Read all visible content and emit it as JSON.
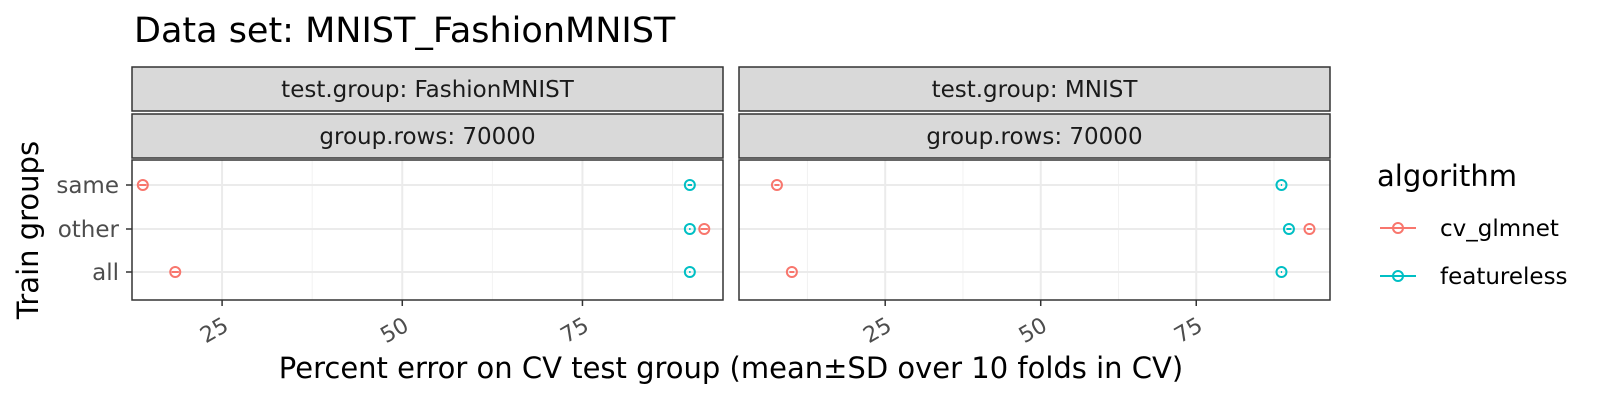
{
  "chart_data": {
    "type": "scatter",
    "title": "Data set: MNIST_FashionMNIST",
    "xlabel": "Percent error on CV test group (mean±SD over 10 folds in CV)",
    "ylabel": "Train groups",
    "categories": [
      "same",
      "other",
      "all"
    ],
    "xticks": [
      25,
      50,
      75
    ],
    "grid": true,
    "legend": {
      "title": "algorithm",
      "position": "right",
      "entries": [
        {
          "name": "cv_glmnet",
          "color": "#F8766D"
        },
        {
          "name": "featureless",
          "color": "#00BFC4"
        }
      ]
    },
    "panels": [
      {
        "strip_top": "test.group: FashionMNIST",
        "strip_bottom": "group.rows: 70000",
        "xlim": [
          12.5,
          94.5
        ],
        "series": [
          {
            "name": "cv_glmnet",
            "points": [
              {
                "y": "same",
                "x": 14.0,
                "sd": 0.5
              },
              {
                "y": "other",
                "x": 91.9,
                "sd": 0.5
              },
              {
                "y": "all",
                "x": 18.5,
                "sd": 0.5
              }
            ]
          },
          {
            "name": "featureless",
            "points": [
              {
                "y": "same",
                "x": 89.9,
                "sd": 0.3
              },
              {
                "y": "other",
                "x": 89.9,
                "sd": 0.1
              },
              {
                "y": "all",
                "x": 89.9,
                "sd": 0.1
              }
            ]
          }
        ]
      },
      {
        "strip_top": "test.group: MNIST",
        "strip_bottom": "group.rows: 70000",
        "xlim": [
          1.5,
          96.5
        ],
        "series": [
          {
            "name": "cv_glmnet",
            "points": [
              {
                "y": "same",
                "x": 7.6,
                "sd": 0.4
              },
              {
                "y": "other",
                "x": 93.2,
                "sd": 0.4
              },
              {
                "y": "all",
                "x": 10.0,
                "sd": 0.4
              }
            ]
          },
          {
            "name": "featureless",
            "points": [
              {
                "y": "same",
                "x": 88.7,
                "sd": 0.1
              },
              {
                "y": "other",
                "x": 89.9,
                "sd": 0.4
              },
              {
                "y": "all",
                "x": 88.7,
                "sd": 0.1
              }
            ]
          }
        ]
      }
    ]
  }
}
